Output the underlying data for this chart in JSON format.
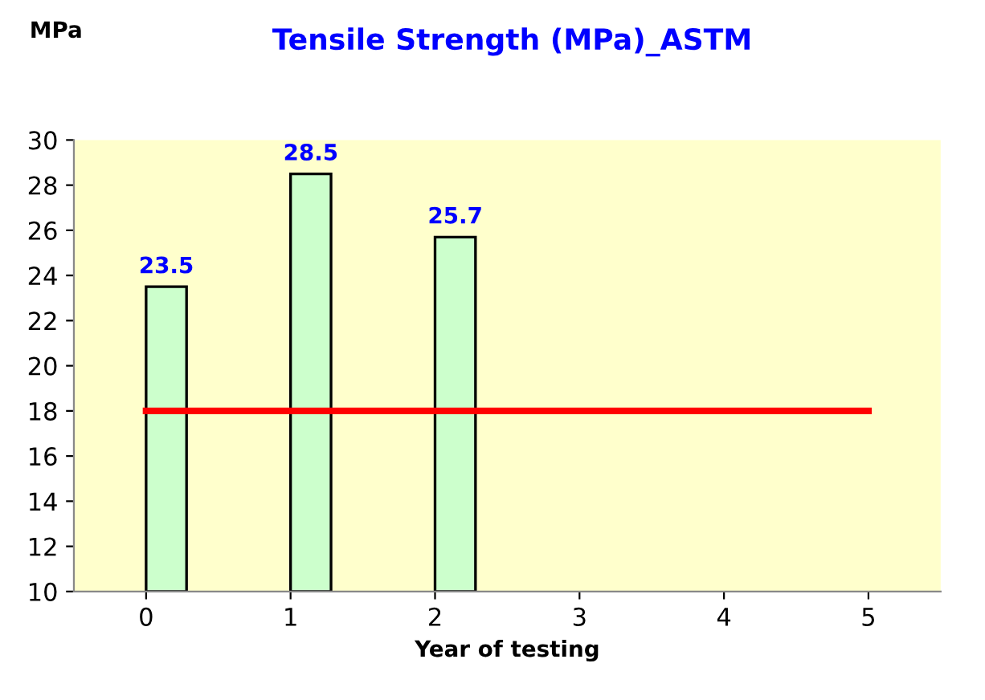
{
  "chart_data": {
    "type": "bar",
    "title": "Tensile Strength (MPa)_ASTM",
    "ylabel": "MPa",
    "xlabel": "Year of testing",
    "categories": [
      "0",
      "1",
      "2",
      "3",
      "4",
      "5"
    ],
    "series": [
      {
        "color": "#ccffcc",
        "values": [
          23.5,
          28.5,
          25.7,
          null,
          null,
          null
        ],
        "value_labels": [
          "23.5",
          "28.5",
          "25.7",
          null,
          null,
          null
        ]
      },
      {
        "type": "line",
        "color": "#ff0000",
        "values": [
          18,
          18,
          18,
          18,
          18,
          18
        ]
      }
    ],
    "ylim": [
      10,
      30
    ],
    "yticks": [
      10,
      12,
      14,
      16,
      18,
      20,
      22,
      24,
      26,
      28,
      30
    ],
    "grid": false,
    "legend": false,
    "marker": "none"
  }
}
